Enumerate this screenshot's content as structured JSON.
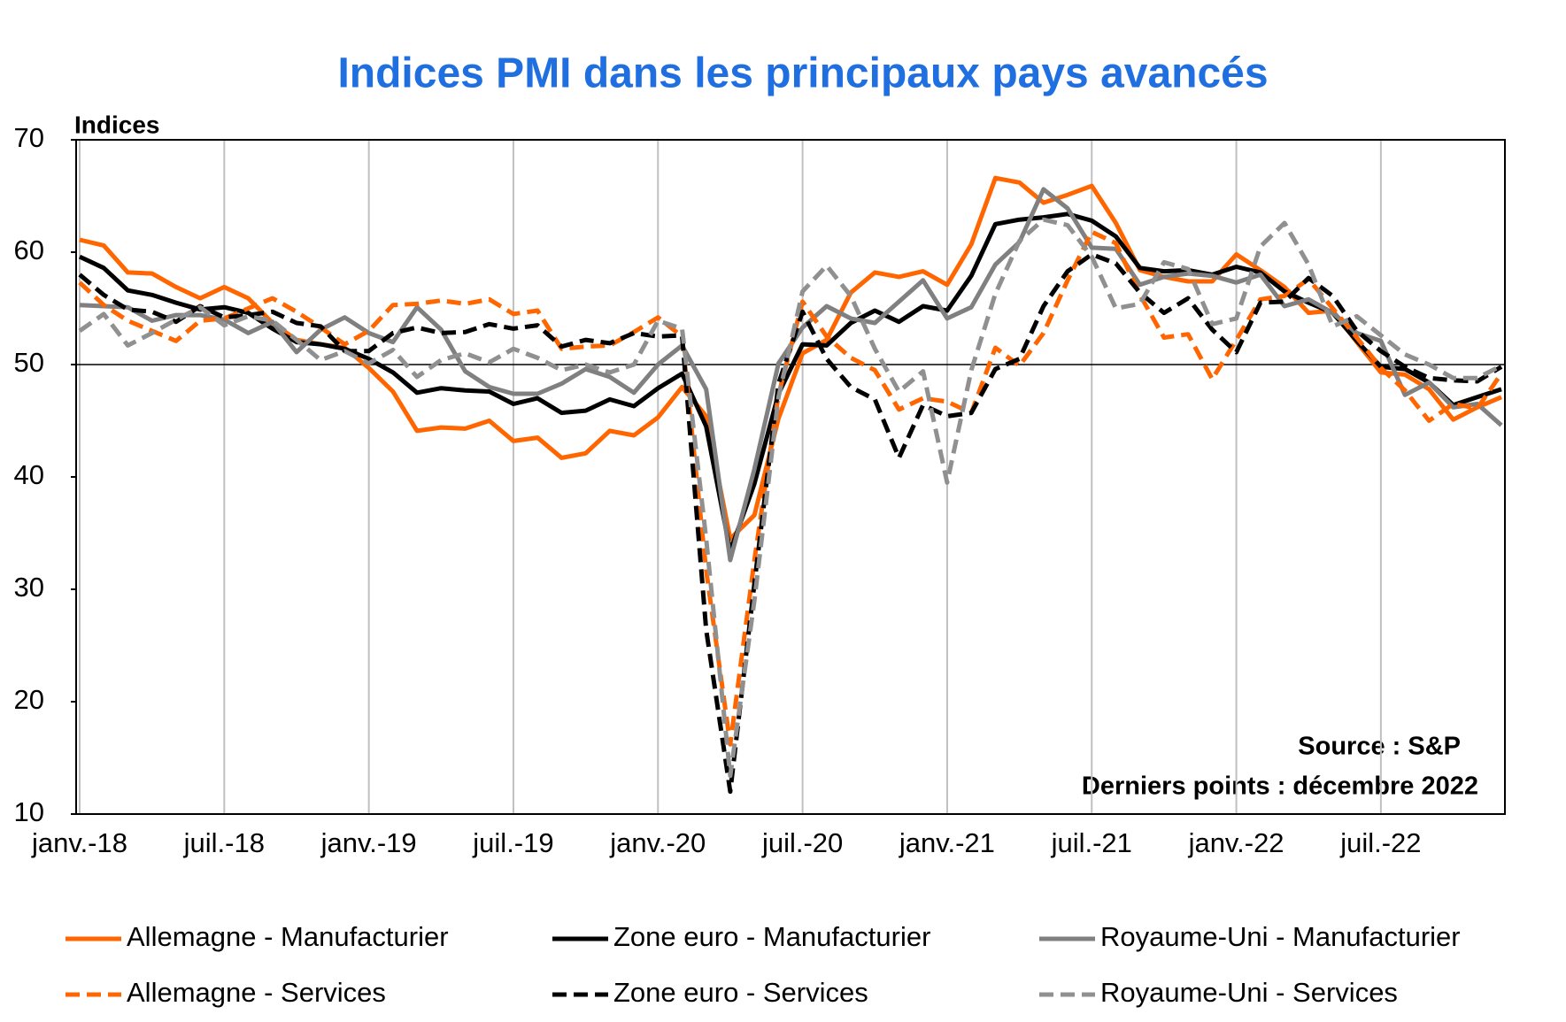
{
  "chart_data": {
    "type": "line",
    "title": "Indices PMI dans les principaux pays avancés",
    "y_label": "Indices",
    "annotations": [
      "Source : S&P",
      "Derniers points : décembre 2022"
    ],
    "categories": [
      "janv.-18",
      null,
      null,
      null,
      null,
      null,
      "juil.-18",
      null,
      null,
      null,
      null,
      null,
      "janv.-19",
      null,
      null,
      null,
      null,
      null,
      "juil.-19",
      null,
      null,
      null,
      null,
      null,
      "janv.-20",
      null,
      null,
      null,
      null,
      null,
      "juil.-20",
      null,
      null,
      null,
      null,
      null,
      "janv.-21",
      null,
      null,
      null,
      null,
      null,
      "juil.-21",
      null,
      null,
      null,
      null,
      null,
      "janv.-22",
      null,
      null,
      null,
      null,
      null,
      "juil.-22",
      null,
      null,
      null,
      null,
      null
    ],
    "ylim": [
      10,
      70
    ],
    "yticks": [
      10,
      20,
      30,
      40,
      50,
      60,
      70
    ],
    "reference_line": 50,
    "grid": "x",
    "series": [
      {
        "name": "Allemagne - Manufacturier",
        "color": "#ff6600",
        "dash": false,
        "values": [
          61.1,
          60.6,
          58.2,
          58.1,
          56.9,
          55.9,
          56.9,
          55.9,
          53.7,
          52.2,
          51.8,
          51.5,
          49.7,
          47.6,
          44.1,
          44.4,
          44.3,
          45.0,
          43.2,
          43.5,
          41.7,
          42.1,
          44.1,
          43.7,
          45.3,
          48.0,
          45.4,
          34.5,
          36.6,
          45.2,
          51.0,
          52.2,
          56.4,
          58.2,
          57.8,
          58.3,
          57.1,
          60.7,
          66.6,
          66.2,
          64.4,
          65.1,
          65.9,
          62.6,
          58.4,
          57.8,
          57.4,
          57.4,
          59.8,
          58.4,
          56.9,
          54.6,
          54.8,
          52.0,
          49.3,
          49.1,
          47.8,
          45.1,
          46.2,
          47.1
        ]
      },
      {
        "name": "Zone euro - Manufacturier",
        "color": "#000000",
        "dash": false,
        "values": [
          59.6,
          58.6,
          56.6,
          56.2,
          55.5,
          54.9,
          55.1,
          54.6,
          53.2,
          52.0,
          51.8,
          51.4,
          50.5,
          49.3,
          47.5,
          47.9,
          47.7,
          47.6,
          46.5,
          47.0,
          45.7,
          45.9,
          46.9,
          46.3,
          47.9,
          49.2,
          44.5,
          33.4,
          39.4,
          47.4,
          51.8,
          51.7,
          53.7,
          54.8,
          53.8,
          55.2,
          54.8,
          57.9,
          62.5,
          62.9,
          63.1,
          63.4,
          62.8,
          61.4,
          58.6,
          58.3,
          58.4,
          58.0,
          58.7,
          58.2,
          56.5,
          55.5,
          54.6,
          52.1,
          49.8,
          49.6,
          48.4,
          46.4,
          47.1,
          47.8
        ]
      },
      {
        "name": "Royaume-Uni - Manufacturier",
        "color": "#808080",
        "dash": false,
        "values": [
          55.3,
          55.2,
          55.1,
          53.9,
          54.4,
          54.4,
          54.0,
          52.8,
          53.8,
          51.1,
          53.1,
          54.2,
          52.8,
          52.0,
          55.1,
          53.1,
          49.4,
          48.0,
          47.4,
          47.4,
          48.3,
          49.6,
          48.9,
          47.5,
          50.0,
          51.7,
          47.8,
          32.6,
          40.7,
          50.1,
          53.3,
          55.2,
          54.1,
          53.7,
          55.6,
          57.5,
          54.1,
          55.1,
          58.9,
          60.9,
          65.6,
          63.9,
          60.4,
          60.3,
          57.1,
          57.8,
          58.1,
          57.9,
          57.3,
          58.0,
          55.2,
          55.8,
          54.6,
          52.8,
          52.1,
          47.3,
          48.4,
          46.2,
          46.5,
          44.6
        ]
      },
      {
        "name": "Allemagne - Services",
        "color": "#ff6600",
        "dash": true,
        "values": [
          57.3,
          55.3,
          53.9,
          53.0,
          52.1,
          53.9,
          54.1,
          55.0,
          55.9,
          54.7,
          53.3,
          51.8,
          53.0,
          55.3,
          55.4,
          55.7,
          55.4,
          55.8,
          54.5,
          54.8,
          51.4,
          51.6,
          51.7,
          52.9,
          54.2,
          52.5,
          31.7,
          16.2,
          32.6,
          47.3,
          55.6,
          52.5,
          50.6,
          49.5,
          46.0,
          47.0,
          46.7,
          45.7,
          51.5,
          49.9,
          52.8,
          57.5,
          61.8,
          60.8,
          56.2,
          52.4,
          52.7,
          48.7,
          52.2,
          55.8,
          56.1,
          57.6,
          55.0,
          52.4,
          49.7,
          47.7,
          45.0,
          46.5,
          46.1,
          49.2
        ]
      },
      {
        "name": "Zone euro - Services",
        "color": "#000000",
        "dash": true,
        "values": [
          58.0,
          56.2,
          54.9,
          54.7,
          53.8,
          55.2,
          54.2,
          54.4,
          54.7,
          53.7,
          53.4,
          51.2,
          51.2,
          52.8,
          53.3,
          52.8,
          52.9,
          53.6,
          53.2,
          53.5,
          51.6,
          52.2,
          51.9,
          52.8,
          52.5,
          52.6,
          26.4,
          12.0,
          30.5,
          48.3,
          54.7,
          50.5,
          48.0,
          46.9,
          41.7,
          46.4,
          45.4,
          45.7,
          49.6,
          50.5,
          55.2,
          58.3,
          59.8,
          59.0,
          56.4,
          54.6,
          55.9,
          53.1,
          51.1,
          55.5,
          55.6,
          57.7,
          56.1,
          53.0,
          51.2,
          49.8,
          48.8,
          48.6,
          48.5,
          49.8
        ]
      },
      {
        "name": "Royaume-Uni - Services",
        "color": "#909090",
        "dash": true,
        "values": [
          53.0,
          54.5,
          51.7,
          52.8,
          54.0,
          55.1,
          53.5,
          54.3,
          53.9,
          52.2,
          50.4,
          51.2,
          50.1,
          51.3,
          48.9,
          50.4,
          51.0,
          50.2,
          51.4,
          50.6,
          49.5,
          50.0,
          49.3,
          50.0,
          53.9,
          53.2,
          34.5,
          13.4,
          29.0,
          47.1,
          56.5,
          58.8,
          56.1,
          51.4,
          47.6,
          49.4,
          39.5,
          49.5,
          56.3,
          61.0,
          62.9,
          62.4,
          59.6,
          55.0,
          55.4,
          59.1,
          58.5,
          53.6,
          54.1,
          60.5,
          62.6,
          58.9,
          53.4,
          54.3,
          52.6,
          50.9,
          50.0,
          48.8,
          48.8,
          49.9
        ]
      }
    ]
  }
}
